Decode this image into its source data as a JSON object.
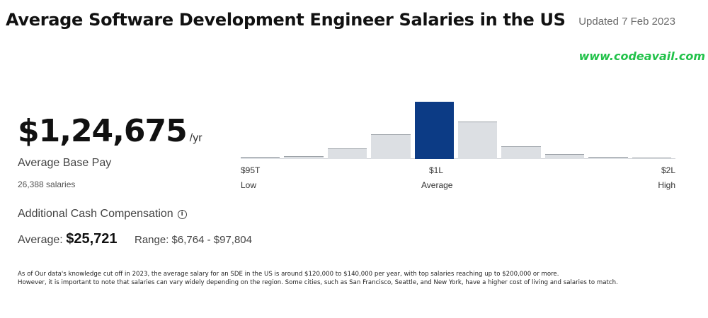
{
  "header": {
    "title": "Average Software Development Engineer Salaries in the US",
    "updated": "Updated 7 Feb 2023"
  },
  "watermark": {
    "text": "www.codeavail.com",
    "color": "#22c24a"
  },
  "base_pay": {
    "amount": "$1,24,675",
    "unit": "/yr",
    "label": "Average Base Pay",
    "count": "26,388 salaries"
  },
  "additional_cash": {
    "title": "Additional Cash Compensation",
    "info_icon": "info-icon",
    "average_label": "Average:",
    "average_value": "$25,721",
    "range_label": "Range:",
    "range_value": "$6,764 - $97,804"
  },
  "histogram": {
    "left_value": "$95T",
    "mid_value": "$1L",
    "right_value": "$2L",
    "left_caption": "Low",
    "mid_caption": "Average",
    "right_caption": "High",
    "relative_heights": [
      0.02,
      0.04,
      0.18,
      0.42,
      1.0,
      0.65,
      0.21,
      0.07,
      0.02,
      0.01
    ],
    "highlight_index": 4,
    "highlight_color": "#0c3b85"
  },
  "footnote": {
    "line1": "As of Our data's knowledge cut off in 2023, the average salary for an SDE in the US is around $120,000 to $140,000 per year, with top salaries reaching up to $200,000 or more.",
    "line2": "However, it is important to note that salaries can vary widely depending on the region. Some cities, such as San Francisco, Seattle, and New York, have a higher cost of living and salaries to match."
  }
}
